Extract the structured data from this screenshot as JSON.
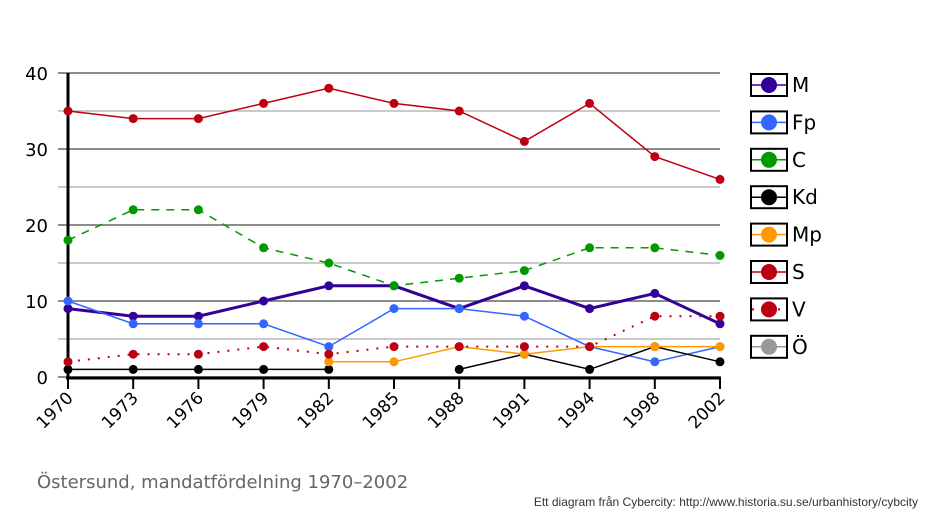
{
  "chart_data": {
    "type": "line",
    "title": "Östersund, mandatfördelning 1970–2002",
    "credit": "Ett diagram från Cybercity: http://www.historia.su.se/urbanhistory/cybcity",
    "xlabel": "",
    "ylabel": "",
    "ylim": [
      0,
      40
    ],
    "yticks": [
      0,
      10,
      20,
      30,
      40
    ],
    "grid": true,
    "legend_position": "right",
    "categories": [
      "1970",
      "1973",
      "1976",
      "1979",
      "1982",
      "1985",
      "1988",
      "1991",
      "1994",
      "1998",
      "2002"
    ],
    "series": [
      {
        "name": "M",
        "color": "#330099",
        "dash": "solid",
        "width": 3,
        "values": [
          9,
          8,
          8,
          10,
          12,
          12,
          9,
          12,
          9,
          11,
          7
        ]
      },
      {
        "name": "Fp",
        "color": "#3366ff",
        "dash": "solid",
        "width": 1.5,
        "values": [
          10,
          7,
          7,
          7,
          4,
          9,
          9,
          8,
          4,
          2,
          4
        ]
      },
      {
        "name": "C",
        "color": "#009900",
        "dash": "dashed",
        "width": 1.5,
        "values": [
          18,
          22,
          22,
          17,
          15,
          12,
          13,
          14,
          17,
          17,
          16
        ]
      },
      {
        "name": "Kd",
        "color": "#000000",
        "dash": "solid",
        "width": 1.5,
        "values": [
          1,
          1,
          1,
          1,
          1,
          null,
          1,
          3,
          1,
          4,
          2
        ]
      },
      {
        "name": "Mp",
        "color": "#ff9900",
        "dash": "solid",
        "width": 1.5,
        "values": [
          null,
          null,
          null,
          null,
          2,
          2,
          4,
          3,
          4,
          4,
          4
        ]
      },
      {
        "name": "S",
        "color": "#bb0011",
        "dash": "solid",
        "width": 1.5,
        "values": [
          35,
          34,
          34,
          36,
          38,
          36,
          35,
          31,
          36,
          29,
          26
        ]
      },
      {
        "name": "V",
        "color": "#bb0011",
        "dash": "dotted",
        "width": 2,
        "values": [
          2,
          3,
          3,
          4,
          3,
          4,
          4,
          4,
          4,
          8,
          8
        ]
      },
      {
        "name": "Ö",
        "color": "#999999",
        "dash": "solid",
        "width": 1.5,
        "values": [
          null,
          null,
          null,
          null,
          null,
          null,
          null,
          null,
          null,
          null,
          null
        ]
      }
    ]
  }
}
